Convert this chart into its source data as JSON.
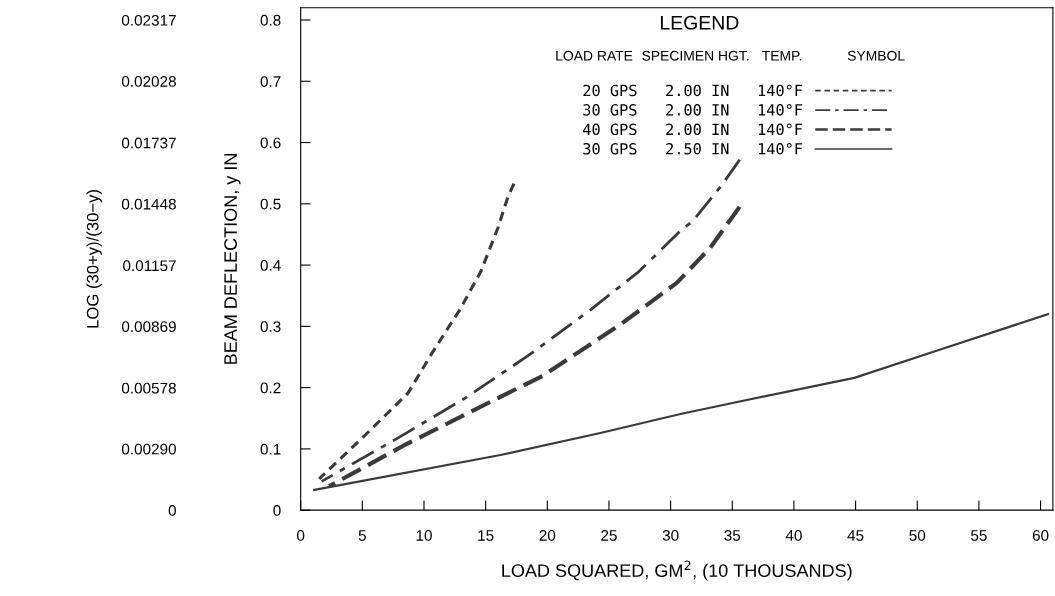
{
  "chart_data": {
    "type": "line",
    "xlabel": "LOAD SQUARED, GM$^{2}$, (10 THOUSANDS)",
    "ylabel": "BEAM DEFLECTION, y IN",
    "y2label": "LOG (30+y)/(30−y)",
    "legend_title": "LEGEND",
    "legend": "top",
    "annotations": [
      "LOAD RATE",
      "SPECIMEN HGT.",
      "TEMP.",
      "SYMBOL"
    ],
    "xlim": [
      0,
      61
    ],
    "xticks": [
      0,
      5,
      10,
      15,
      20,
      25,
      30,
      35,
      40,
      45,
      50,
      55,
      60
    ],
    "ylim": [
      0,
      0.82
    ],
    "yticks": [
      {
        "value": 0,
        "label": "0"
      },
      {
        "value": 0.1,
        "label": "0.1"
      },
      {
        "value": 0.2,
        "label": "0.2"
      },
      {
        "value": 0.3,
        "label": "0.3"
      },
      {
        "value": 0.4,
        "label": "0.4"
      },
      {
        "value": 0.5,
        "label": "0.5"
      },
      {
        "value": 0.6,
        "label": "0.6"
      },
      {
        "value": 0.7,
        "label": "0.7"
      },
      {
        "value": 0.8,
        "label": "0.8"
      }
    ],
    "y2lim": [
      0,
      0.02375
    ],
    "y2ticks": [
      {
        "value": 0,
        "label": "0"
      },
      {
        "value": 0.0029,
        "label": "0.00290"
      },
      {
        "value": 0.00578,
        "label": "0.00578"
      },
      {
        "value": 0.00869,
        "label": "0.00869"
      },
      {
        "value": 0.01157,
        "label": "0.01157"
      },
      {
        "value": 0.01448,
        "label": "0.01448"
      },
      {
        "value": 0.01737,
        "label": "0.01737"
      },
      {
        "value": 0.02028,
        "label": "0.02028"
      },
      {
        "value": 0.02317,
        "label": "0.02317"
      }
    ],
    "grid": false,
    "series": [
      {
        "name": "20 GPS   2.00 IN   140°F",
        "color": "#3a3a3a",
        "line_style": "dashed",
        "x": [
          1.5,
          5.0,
          8.7,
          10.7,
          12.9,
          14.6,
          16.0,
          16.8,
          17.3
        ],
        "values": [
          0.051,
          0.118,
          0.191,
          0.258,
          0.327,
          0.389,
          0.461,
          0.511,
          0.533
        ]
      },
      {
        "name": "30 GPS   2.00 IN   140°F",
        "color": "#3a3a3a",
        "line_style": "dashdot",
        "x": [
          1.7,
          7.9,
          13.5,
          18.5,
          23.5,
          27.4,
          30.8,
          31.8,
          34.1,
          35.6
        ],
        "values": [
          0.047,
          0.118,
          0.185,
          0.253,
          0.327,
          0.389,
          0.456,
          0.472,
          0.529,
          0.572
        ]
      },
      {
        "name": "40 GPS   2.00 IN   140°F",
        "color": "#3a3a3a",
        "line_style": "longdashed",
        "x": [
          2.3,
          8.4,
          15.7,
          19.6,
          26.0,
          30.5,
          33.2,
          35.6
        ],
        "values": [
          0.039,
          0.106,
          0.18,
          0.219,
          0.304,
          0.371,
          0.428,
          0.495
        ]
      },
      {
        "name": "30 GPS   2.50 IN   140°F",
        "color": "#3a3a3a",
        "line_style": "solid",
        "x": [
          1.1,
          16.2,
          24.3,
          30.8,
          35.5,
          44.9,
          52.3,
          60.6
        ],
        "values": [
          0.033,
          0.09,
          0.126,
          0.157,
          0.177,
          0.216,
          0.265,
          0.32
        ]
      }
    ]
  }
}
